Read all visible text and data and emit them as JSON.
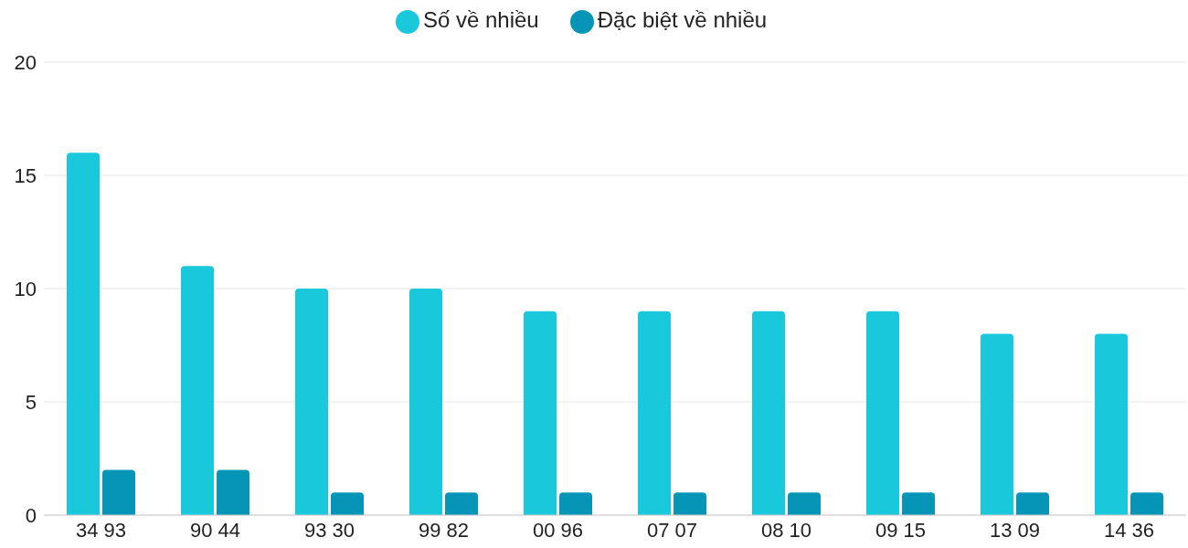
{
  "chart_data": {
    "type": "bar",
    "categories": [
      "34 93",
      "90 44",
      "93 30",
      "99 82",
      "00 96",
      "07 07",
      "08 10",
      "09 15",
      "13 09",
      "14 36"
    ],
    "series": [
      {
        "name": "Số về nhiều",
        "color": "#1ac8db",
        "values": [
          16,
          11,
          10,
          10,
          9,
          9,
          9,
          9,
          8,
          8
        ]
      },
      {
        "name": "Đặc biệt về nhiều",
        "color": "#0795b7",
        "values": [
          2,
          2,
          1,
          1,
          1,
          1,
          1,
          1,
          1,
          1
        ]
      }
    ],
    "ylim": [
      0,
      20
    ],
    "yticks": [
      0,
      5,
      10,
      15,
      20
    ],
    "grid": "y",
    "legend": "top"
  }
}
